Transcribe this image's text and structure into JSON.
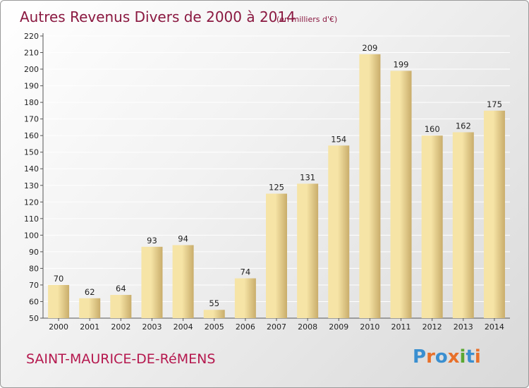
{
  "header": {
    "title": "Autres Revenus Divers de 2000 à 2014",
    "subtitle": "(en milliers d'€)"
  },
  "commune": "SAINT-MAURICE-DE-RéMENS",
  "logo": {
    "text": "Proxiti",
    "letter_colors": [
      "#3a8fd0",
      "#e8702a",
      "#3a8fd0",
      "#e8702a",
      "#5aa832",
      "#3a8fd0",
      "#e8702a"
    ]
  },
  "chart_data": {
    "type": "bar",
    "title": "Autres Revenus Divers de 2000 à 2014",
    "subtitle": "(en milliers d'€)",
    "xlabel": "",
    "ylabel": "",
    "categories": [
      "2000",
      "2001",
      "2002",
      "2003",
      "2004",
      "2005",
      "2006",
      "2007",
      "2008",
      "2009",
      "2010",
      "2011",
      "2012",
      "2013",
      "2014"
    ],
    "values": [
      70,
      62,
      64,
      93,
      94,
      55,
      74,
      125,
      131,
      154,
      209,
      199,
      160,
      162,
      175
    ],
    "ylim": [
      50,
      220
    ],
    "yticks": [
      50,
      60,
      70,
      80,
      90,
      100,
      110,
      120,
      130,
      140,
      150,
      160,
      170,
      180,
      190,
      200,
      210,
      220
    ],
    "grid": true,
    "legend": "none",
    "bar_color_light": "#f6e4a6",
    "bar_color_dark": "#c9ad6b"
  }
}
